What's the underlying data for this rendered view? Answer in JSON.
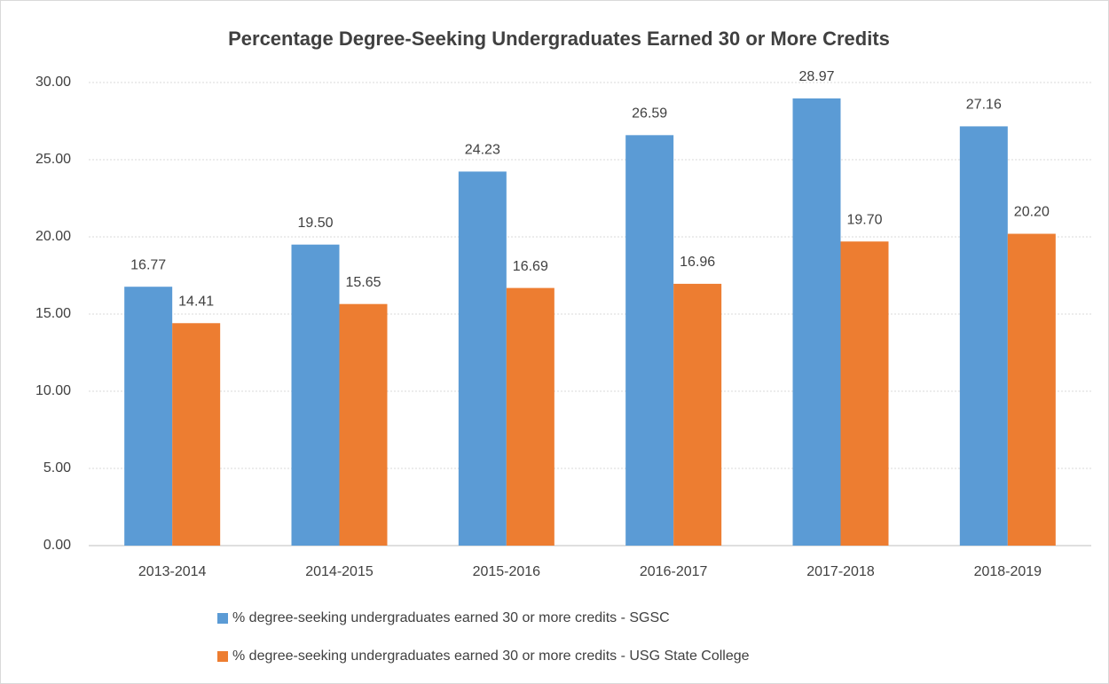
{
  "chart_data": {
    "type": "bar",
    "title": "Percentage Degree-Seeking Undergraduates Earned 30 or More Credits",
    "categories": [
      "2013-2014",
      "2014-2015",
      "2015-2016",
      "2016-2017",
      "2017-2018",
      "2018-2019"
    ],
    "series": [
      {
        "name": "% degree-seeking undergraduates earned 30 or more credits - SGSC",
        "color": "#5b9bd5",
        "values": [
          16.77,
          19.5,
          24.23,
          26.59,
          28.97,
          27.16
        ],
        "value_labels": [
          "16.77",
          "19.50",
          "24.23",
          "26.59",
          "28.97",
          "27.16"
        ]
      },
      {
        "name": "% degree-seeking undergraduates earned 30 or more credits - USG State College",
        "color": "#ed7d31",
        "values": [
          14.41,
          15.65,
          16.69,
          16.96,
          19.7,
          20.2
        ],
        "value_labels": [
          "14.41",
          "15.65",
          "16.69",
          "16.96",
          "19.70",
          "20.20"
        ]
      }
    ],
    "ylim": [
      0,
      30
    ],
    "yticks": [
      {
        "value": 0,
        "label": "0.00"
      },
      {
        "value": 5,
        "label": "5.00"
      },
      {
        "value": 10,
        "label": "10.00"
      },
      {
        "value": 15,
        "label": "15.00"
      },
      {
        "value": 20,
        "label": "20.00"
      },
      {
        "value": 25,
        "label": "25.00"
      },
      {
        "value": 30,
        "label": "30.00"
      }
    ],
    "grid": true
  }
}
